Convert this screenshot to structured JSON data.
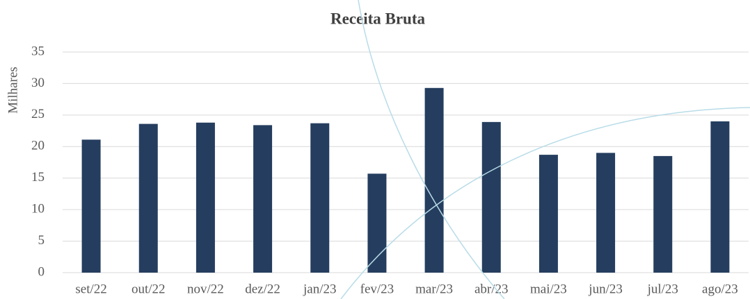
{
  "chart_data": {
    "type": "bar",
    "title": "Receita Bruta",
    "y_label": "Milhares",
    "categories": [
      "set/22",
      "out/22",
      "nov/22",
      "dez/22",
      "jan/23",
      "fev/23",
      "mar/23",
      "abr/23",
      "mai/23",
      "jun/23",
      "jul/23",
      "ago/23"
    ],
    "values": [
      21.1,
      23.6,
      23.8,
      23.4,
      23.7,
      15.7,
      29.3,
      23.9,
      18.7,
      19.0,
      18.5,
      24.0
    ],
    "color": "#253e5f",
    "ylim": [
      0,
      35
    ],
    "yticks": [
      0,
      5,
      10,
      15,
      20,
      25,
      30,
      35
    ],
    "grid": true
  }
}
